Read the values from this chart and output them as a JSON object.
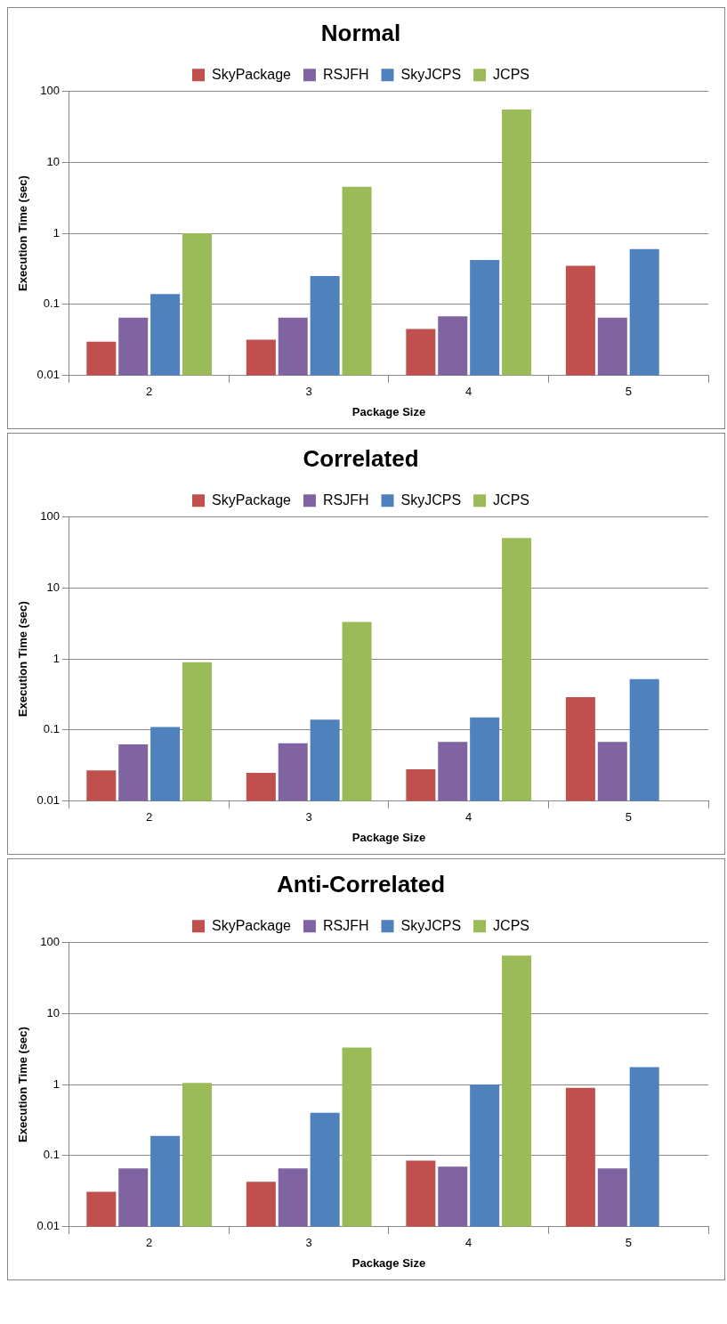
{
  "chart_data": [
    {
      "type": "bar",
      "title": "Normal",
      "xlabel": "Package Size",
      "ylabel": "Execution Time (sec)",
      "categories": [
        "2",
        "3",
        "4",
        "5"
      ],
      "log": "y",
      "grid": "y",
      "legend": "top",
      "ylim": [
        0.01,
        100
      ],
      "yticks": [
        0.01,
        0.1,
        1,
        10,
        100
      ],
      "series": [
        {
          "name": "SkyPackage",
          "color": "#c0504d",
          "values": [
            0.03,
            0.032,
            0.045,
            0.35
          ]
        },
        {
          "name": "RSJFH",
          "color": "#8064a2",
          "values": [
            0.065,
            0.065,
            0.068,
            0.065
          ]
        },
        {
          "name": "SkyJCPS",
          "color": "#4f81bd",
          "values": [
            0.14,
            0.25,
            0.42,
            0.6
          ]
        },
        {
          "name": "JCPS",
          "color": "#9bbb59",
          "values": [
            1,
            4.5,
            55,
            null
          ]
        }
      ]
    },
    {
      "type": "bar",
      "title": "Correlated",
      "xlabel": "Package Size",
      "ylabel": "Execution Time (sec)",
      "categories": [
        "2",
        "3",
        "4",
        "5"
      ],
      "log": "y",
      "grid": "y",
      "legend": "top",
      "ylim": [
        0.01,
        100
      ],
      "yticks": [
        0.01,
        0.1,
        1,
        10,
        100
      ],
      "series": [
        {
          "name": "SkyPackage",
          "color": "#c0504d",
          "values": [
            0.027,
            0.025,
            0.028,
            0.29
          ]
        },
        {
          "name": "RSJFH",
          "color": "#8064a2",
          "values": [
            0.063,
            0.065,
            0.068,
            0.068
          ]
        },
        {
          "name": "SkyJCPS",
          "color": "#4f81bd",
          "values": [
            0.11,
            0.14,
            0.15,
            0.52
          ]
        },
        {
          "name": "JCPS",
          "color": "#9bbb59",
          "values": [
            0.9,
            3.3,
            50,
            null
          ]
        }
      ]
    },
    {
      "type": "bar",
      "title": "Anti-Correlated",
      "xlabel": "Package Size",
      "ylabel": "Execution Time (sec)",
      "categories": [
        "2",
        "3",
        "4",
        "5"
      ],
      "log": "y",
      "grid": "y",
      "legend": "top",
      "ylim": [
        0.01,
        100
      ],
      "yticks": [
        0.01,
        0.1,
        1,
        10,
        100
      ],
      "series": [
        {
          "name": "SkyPackage",
          "color": "#c0504d",
          "values": [
            0.031,
            0.043,
            0.085,
            0.9
          ]
        },
        {
          "name": "RSJFH",
          "color": "#8064a2",
          "values": [
            0.066,
            0.066,
            0.07,
            0.066
          ]
        },
        {
          "name": "SkyJCPS",
          "color": "#4f81bd",
          "values": [
            0.19,
            0.4,
            1.0,
            1.75
          ]
        },
        {
          "name": "JCPS",
          "color": "#9bbb59",
          "values": [
            1.05,
            3.3,
            65,
            null
          ]
        }
      ]
    }
  ]
}
